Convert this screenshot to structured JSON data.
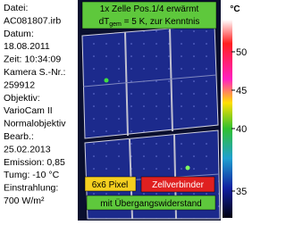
{
  "info": {
    "lines": [
      "Datei:",
      "AC081807.irb",
      "Datum:",
      "18.08.2011",
      "Zeit: 10:34:09",
      "Kamera S.-Nr.:",
      "259912",
      "Objektiv:",
      "VarioCam II",
      "Normalobjektiv",
      "Bearb.:",
      "25.02.2013",
      "Emission: 0,85",
      "Tumg: -10 °C",
      "Einstrahlung:",
      "700 W/m²"
    ]
  },
  "annotations": {
    "top_line1": "1x Zelle Pos.1/4 erwärmt",
    "top_line2_a": "dT",
    "top_line2_sub": "gem",
    "top_line2_b": " = 5 K, zur Kenntnis",
    "pixel_box": "6x6 Pixel",
    "connector_line1": "Zellverbinder",
    "connector_line2": "mit Übergangswiderstand"
  },
  "scale": {
    "unit": "°C",
    "labels": [
      "50",
      "45",
      "40",
      "35"
    ]
  }
}
